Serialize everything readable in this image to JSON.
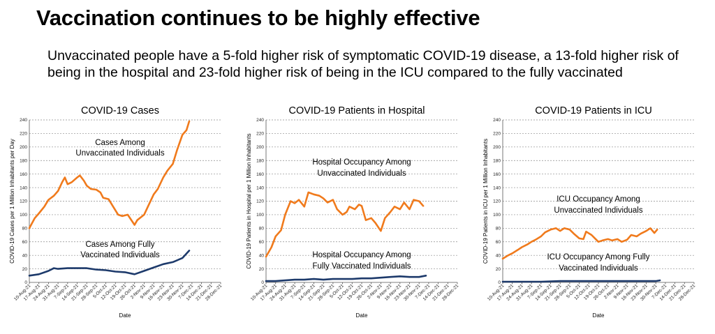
{
  "title": "Vaccination continues to be highly effective",
  "subtitle": "Unvaccinated people have a 5-fold higher risk of symptomatic COVID-19 disease, a 13-fold higher risk of being in the hospital and 23-fold higher risk of being in the ICU compared to the fully vaccinated",
  "colors": {
    "unvaccinated": "#f07a1c",
    "vaccinated": "#1d3a6b"
  },
  "chart_data": [
    {
      "type": "line",
      "title": "COVID-19 Cases",
      "xlabel": "Date",
      "ylabel": "COVID-19 Cases per 1 Million Inhabitants per Day",
      "ylim": [
        0,
        240
      ],
      "yticks": [
        0,
        20,
        40,
        60,
        80,
        100,
        120,
        140,
        160,
        180,
        200,
        220,
        240
      ],
      "xlim": [
        "10-Aug-21",
        "28-Dec-21"
      ],
      "xticks": [
        "10-Aug-21",
        "17-Aug-21",
        "24-Aug-21",
        "31-Aug-21",
        "7-Sep-21",
        "14-Sep-21",
        "21-Sep-21",
        "28-Sep-21",
        "5-Oct-21",
        "12-Oct-21",
        "19-Oct-21",
        "26-Oct-21",
        "2-Nov-21",
        "9-Nov-21",
        "16-Nov-21",
        "23-Nov-21",
        "30-Nov-21",
        "7-Dec-21",
        "14-Dec-21",
        "21-Dec-21",
        "28-Dec-21"
      ],
      "grid": "horizontal dashed",
      "annotations": [
        "Cases Among",
        "Unvaccinated Individuals",
        "Cases Among Fully",
        "Vaccinated Individuals"
      ],
      "series": [
        {
          "name": "Cases Among Unvaccinated Individuals",
          "color_key": "unvaccinated",
          "points": [
            [
              "10-Aug-21",
              80
            ],
            [
              "14-Aug-21",
              95
            ],
            [
              "17-Aug-21",
              102
            ],
            [
              "21-Aug-21",
              112
            ],
            [
              "24-Aug-21",
              122
            ],
            [
              "28-Aug-21",
              128
            ],
            [
              "31-Aug-21",
              135
            ],
            [
              "3-Sep-21",
              148
            ],
            [
              "5-Sep-21",
              155
            ],
            [
              "7-Sep-21",
              145
            ],
            [
              "10-Sep-21",
              148
            ],
            [
              "14-Sep-21",
              155
            ],
            [
              "16-Sep-21",
              158
            ],
            [
              "19-Sep-21",
              150
            ],
            [
              "21-Sep-21",
              143
            ],
            [
              "24-Sep-21",
              138
            ],
            [
              "28-Sep-21",
              137
            ],
            [
              "1-Oct-21",
              133
            ],
            [
              "3-Oct-21",
              125
            ],
            [
              "7-Oct-21",
              123
            ],
            [
              "10-Oct-21",
              113
            ],
            [
              "14-Oct-21",
              100
            ],
            [
              "17-Oct-21",
              98
            ],
            [
              "21-Oct-21",
              100
            ],
            [
              "26-Oct-21",
              85
            ],
            [
              "28-Oct-21",
              92
            ],
            [
              "2-Nov-21",
              100
            ],
            [
              "5-Nov-21",
              113
            ],
            [
              "9-Nov-21",
              130
            ],
            [
              "12-Nov-21",
              138
            ],
            [
              "16-Nov-21",
              155
            ],
            [
              "19-Nov-21",
              165
            ],
            [
              "23-Nov-21",
              175
            ],
            [
              "26-Nov-21",
              195
            ],
            [
              "30-Nov-21",
              218
            ],
            [
              "3-Dec-21",
              225
            ],
            [
              "5-Dec-21",
              238
            ]
          ]
        },
        {
          "name": "Cases Among Fully Vaccinated Individuals",
          "color_key": "vaccinated",
          "points": [
            [
              "10-Aug-21",
              10
            ],
            [
              "17-Aug-21",
              12
            ],
            [
              "24-Aug-21",
              17
            ],
            [
              "28-Aug-21",
              21
            ],
            [
              "31-Aug-21",
              20
            ],
            [
              "7-Sep-21",
              21
            ],
            [
              "14-Sep-21",
              21
            ],
            [
              "21-Sep-21",
              21
            ],
            [
              "28-Sep-21",
              19
            ],
            [
              "5-Oct-21",
              18
            ],
            [
              "12-Oct-21",
              16
            ],
            [
              "19-Oct-21",
              15
            ],
            [
              "26-Oct-21",
              12
            ],
            [
              "2-Nov-21",
              17
            ],
            [
              "9-Nov-21",
              22
            ],
            [
              "16-Nov-21",
              27
            ],
            [
              "23-Nov-21",
              30
            ],
            [
              "30-Nov-21",
              36
            ],
            [
              "5-Dec-21",
              47
            ]
          ]
        }
      ]
    },
    {
      "type": "line",
      "title": "COVID-19 Patients in Hospital",
      "xlabel": "Date",
      "ylabel": "COVID-19 Patients in Hospital per 1 Million Inhabitants",
      "ylim": [
        0,
        240
      ],
      "yticks": [
        0,
        20,
        40,
        60,
        80,
        100,
        120,
        140,
        160,
        180,
        200,
        220,
        240
      ],
      "xlim": [
        "10-Aug-21",
        "28-Dec-21"
      ],
      "xticks": [
        "10-Aug-21",
        "17-Aug-21",
        "24-Aug-21",
        "31-Aug-21",
        "7-Sep-21",
        "14-Sep-21",
        "21-Sep-21",
        "28-Sep-21",
        "5-Oct-21",
        "12-Oct-21",
        "19-Oct-21",
        "26-Oct-21",
        "2-Nov-21",
        "9-Nov-21",
        "16-Nov-21",
        "23-Nov-21",
        "30-Nov-21",
        "7-Dec-21",
        "14-Dec-21",
        "21-Dec-21",
        "28-Dec-21"
      ],
      "grid": "horizontal dashed",
      "annotations": [
        "Hospital Occupancy Among",
        "Unvaccinated Individuals",
        "Hospital Occupancy  Among",
        "Fully Vaccinated Individuals"
      ],
      "series": [
        {
          "name": "Hospital Occupancy Among Unvaccinated Individuals",
          "color_key": "unvaccinated",
          "points": [
            [
              "10-Aug-21",
              38
            ],
            [
              "14-Aug-21",
              52
            ],
            [
              "17-Aug-21",
              68
            ],
            [
              "21-Aug-21",
              77
            ],
            [
              "24-Aug-21",
              100
            ],
            [
              "28-Aug-21",
              120
            ],
            [
              "31-Aug-21",
              117
            ],
            [
              "3-Sep-21",
              122
            ],
            [
              "7-Sep-21",
              112
            ],
            [
              "10-Sep-21",
              133
            ],
            [
              "14-Sep-21",
              130
            ],
            [
              "18-Sep-21",
              128
            ],
            [
              "21-Sep-21",
              124
            ],
            [
              "24-Sep-21",
              118
            ],
            [
              "28-Sep-21",
              122
            ],
            [
              "1-Oct-21",
              108
            ],
            [
              "5-Oct-21",
              100
            ],
            [
              "8-Oct-21",
              104
            ],
            [
              "10-Oct-21",
              112
            ],
            [
              "14-Oct-21",
              108
            ],
            [
              "17-Oct-21",
              115
            ],
            [
              "19-Oct-21",
              113
            ],
            [
              "22-Oct-21",
              92
            ],
            [
              "26-Oct-21",
              95
            ],
            [
              "29-Oct-21",
              88
            ],
            [
              "2-Nov-21",
              76
            ],
            [
              "5-Nov-21",
              95
            ],
            [
              "9-Nov-21",
              104
            ],
            [
              "12-Nov-21",
              112
            ],
            [
              "16-Nov-21",
              108
            ],
            [
              "19-Nov-21",
              118
            ],
            [
              "23-Nov-21",
              108
            ],
            [
              "26-Nov-21",
              122
            ],
            [
              "30-Nov-21",
              120
            ],
            [
              "3-Dec-21",
              113
            ]
          ]
        },
        {
          "name": "Hospital Occupancy Among Fully Vaccinated Individuals",
          "color_key": "vaccinated",
          "points": [
            [
              "10-Aug-21",
              2
            ],
            [
              "17-Aug-21",
              2
            ],
            [
              "24-Aug-21",
              3
            ],
            [
              "31-Aug-21",
              4
            ],
            [
              "7-Sep-21",
              4
            ],
            [
              "14-Sep-21",
              5
            ],
            [
              "21-Sep-21",
              4
            ],
            [
              "28-Sep-21",
              5
            ],
            [
              "5-Oct-21",
              5
            ],
            [
              "12-Oct-21",
              5
            ],
            [
              "19-Oct-21",
              6
            ],
            [
              "26-Oct-21",
              6
            ],
            [
              "2-Nov-21",
              7
            ],
            [
              "9-Nov-21",
              8
            ],
            [
              "16-Nov-21",
              9
            ],
            [
              "23-Nov-21",
              8
            ],
            [
              "30-Nov-21",
              8
            ],
            [
              "5-Dec-21",
              10
            ]
          ]
        }
      ]
    },
    {
      "type": "line",
      "title": "COVID-19 Patients in ICU",
      "xlabel": "Date",
      "ylabel": "COVID-19 Patients in ICU per 1 Million Inhabitants",
      "ylim": [
        0,
        240
      ],
      "yticks": [
        0,
        20,
        40,
        60,
        80,
        100,
        120,
        140,
        160,
        180,
        200,
        220,
        240
      ],
      "xlim": [
        "10-Aug-21",
        "28-Dec-21"
      ],
      "xticks": [
        "10-Aug-21",
        "17-Aug-21",
        "24-Aug-21",
        "31-Aug-21",
        "7-Sep-21",
        "14-Sep-21",
        "21-Sep-21",
        "28-Sep-21",
        "5-Oct-21",
        "12-Oct-21",
        "19-Oct-21",
        "26-Oct-21",
        "2-Nov-21",
        "9-Nov-21",
        "16-Nov-21",
        "23-Nov-21",
        "30-Nov-21",
        "7-Dec-21",
        "14-Dec-21",
        "21-Dec-21",
        "28-Dec-21"
      ],
      "grid": "horizontal dashed",
      "annotations": [
        "ICU Occupancy Among",
        "Unvaccinated Individuals",
        "ICU Occupancy Among Fully",
        "Vaccinated Individuals"
      ],
      "series": [
        {
          "name": "ICU Occupancy Among Unvaccinated Individuals",
          "color_key": "unvaccinated",
          "points": [
            [
              "10-Aug-21",
              35
            ],
            [
              "14-Aug-21",
              40
            ],
            [
              "17-Aug-21",
              43
            ],
            [
              "21-Aug-21",
              48
            ],
            [
              "24-Aug-21",
              52
            ],
            [
              "28-Aug-21",
              56
            ],
            [
              "31-Aug-21",
              60
            ],
            [
              "3-Sep-21",
              63
            ],
            [
              "7-Sep-21",
              68
            ],
            [
              "10-Sep-21",
              74
            ],
            [
              "14-Sep-21",
              78
            ],
            [
              "18-Sep-21",
              80
            ],
            [
              "21-Sep-21",
              76
            ],
            [
              "24-Sep-21",
              80
            ],
            [
              "28-Sep-21",
              78
            ],
            [
              "1-Oct-21",
              72
            ],
            [
              "5-Oct-21",
              65
            ],
            [
              "8-Oct-21",
              64
            ],
            [
              "10-Oct-21",
              75
            ],
            [
              "14-Oct-21",
              70
            ],
            [
              "17-Oct-21",
              64
            ],
            [
              "19-Oct-21",
              60
            ],
            [
              "22-Oct-21",
              62
            ],
            [
              "26-Oct-21",
              64
            ],
            [
              "29-Oct-21",
              62
            ],
            [
              "2-Nov-21",
              64
            ],
            [
              "5-Nov-21",
              60
            ],
            [
              "9-Nov-21",
              63
            ],
            [
              "12-Nov-21",
              70
            ],
            [
              "16-Nov-21",
              68
            ],
            [
              "19-Nov-21",
              72
            ],
            [
              "23-Nov-21",
              76
            ],
            [
              "26-Nov-21",
              80
            ],
            [
              "29-Nov-21",
              73
            ],
            [
              "1-Dec-21",
              78
            ]
          ]
        },
        {
          "name": "ICU Occupancy Among Fully Vaccinated Individuals",
          "color_key": "vaccinated",
          "points": [
            [
              "10-Aug-21",
              1
            ],
            [
              "24-Aug-21",
              1
            ],
            [
              "7-Sep-21",
              1
            ],
            [
              "21-Sep-21",
              2
            ],
            [
              "5-Oct-21",
              2
            ],
            [
              "19-Oct-21",
              2
            ],
            [
              "2-Nov-21",
              2
            ],
            [
              "16-Nov-21",
              2
            ],
            [
              "30-Nov-21",
              2
            ],
            [
              "3-Dec-21",
              3
            ]
          ]
        }
      ]
    }
  ]
}
